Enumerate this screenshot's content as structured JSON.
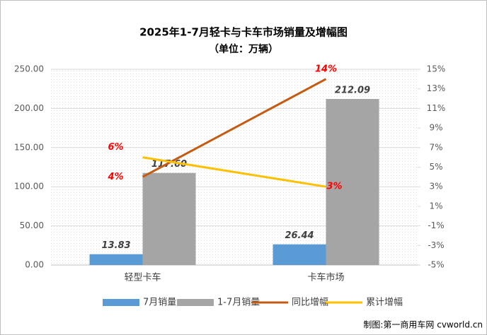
{
  "chart_data": {
    "type": "bar",
    "title": "2025年1-7月轻卡与卡车市场销量及增幅图",
    "subtitle": "（单位：万辆）",
    "categories": [
      "轻型卡车",
      "卡车市场"
    ],
    "series": [
      {
        "name": "7月销量",
        "type": "bar",
        "color": "#5b9bd5",
        "values": [
          13.83,
          26.44
        ]
      },
      {
        "name": "1-7月销量",
        "type": "bar",
        "color": "#a5a5a5",
        "values": [
          117.6,
          212.09
        ],
        "value_labels": [
          "117.60",
          "212.09"
        ]
      },
      {
        "name": "同比增幅",
        "type": "line",
        "axis": "y2",
        "color": "#c55a11",
        "values": [
          4,
          14
        ],
        "value_labels": [
          "4%",
          "14%"
        ]
      },
      {
        "name": "累计增幅",
        "type": "line",
        "axis": "y2",
        "color": "#ffc000",
        "values": [
          6,
          3
        ],
        "value_labels": [
          "6%",
          "3%"
        ]
      }
    ],
    "ylim": [
      0,
      250
    ],
    "yticks": [
      {
        "value": 0,
        "label": "0.00"
      },
      {
        "value": 50,
        "label": "50.00"
      },
      {
        "value": 100,
        "label": "100.00"
      },
      {
        "value": 150,
        "label": "150.00"
      },
      {
        "value": 200,
        "label": "200.00"
      },
      {
        "value": 250,
        "label": "250.00"
      }
    ],
    "y2lim": [
      -5,
      15
    ],
    "y2ticks": [
      {
        "value": -5,
        "label": "-5%"
      },
      {
        "value": -3,
        "label": "-3%"
      },
      {
        "value": -1,
        "label": "-1%"
      },
      {
        "value": 1,
        "label": "1%"
      },
      {
        "value": 3,
        "label": "3%"
      },
      {
        "value": 5,
        "label": "5%"
      },
      {
        "value": 7,
        "label": "7%"
      },
      {
        "value": 9,
        "label": "9%"
      },
      {
        "value": 11,
        "label": "11%"
      },
      {
        "value": 13,
        "label": "13%"
      },
      {
        "value": 15,
        "label": "15%"
      }
    ],
    "grid": true,
    "legend": "bottom",
    "source": "制图:第一商用车网 cvworld.cn"
  }
}
